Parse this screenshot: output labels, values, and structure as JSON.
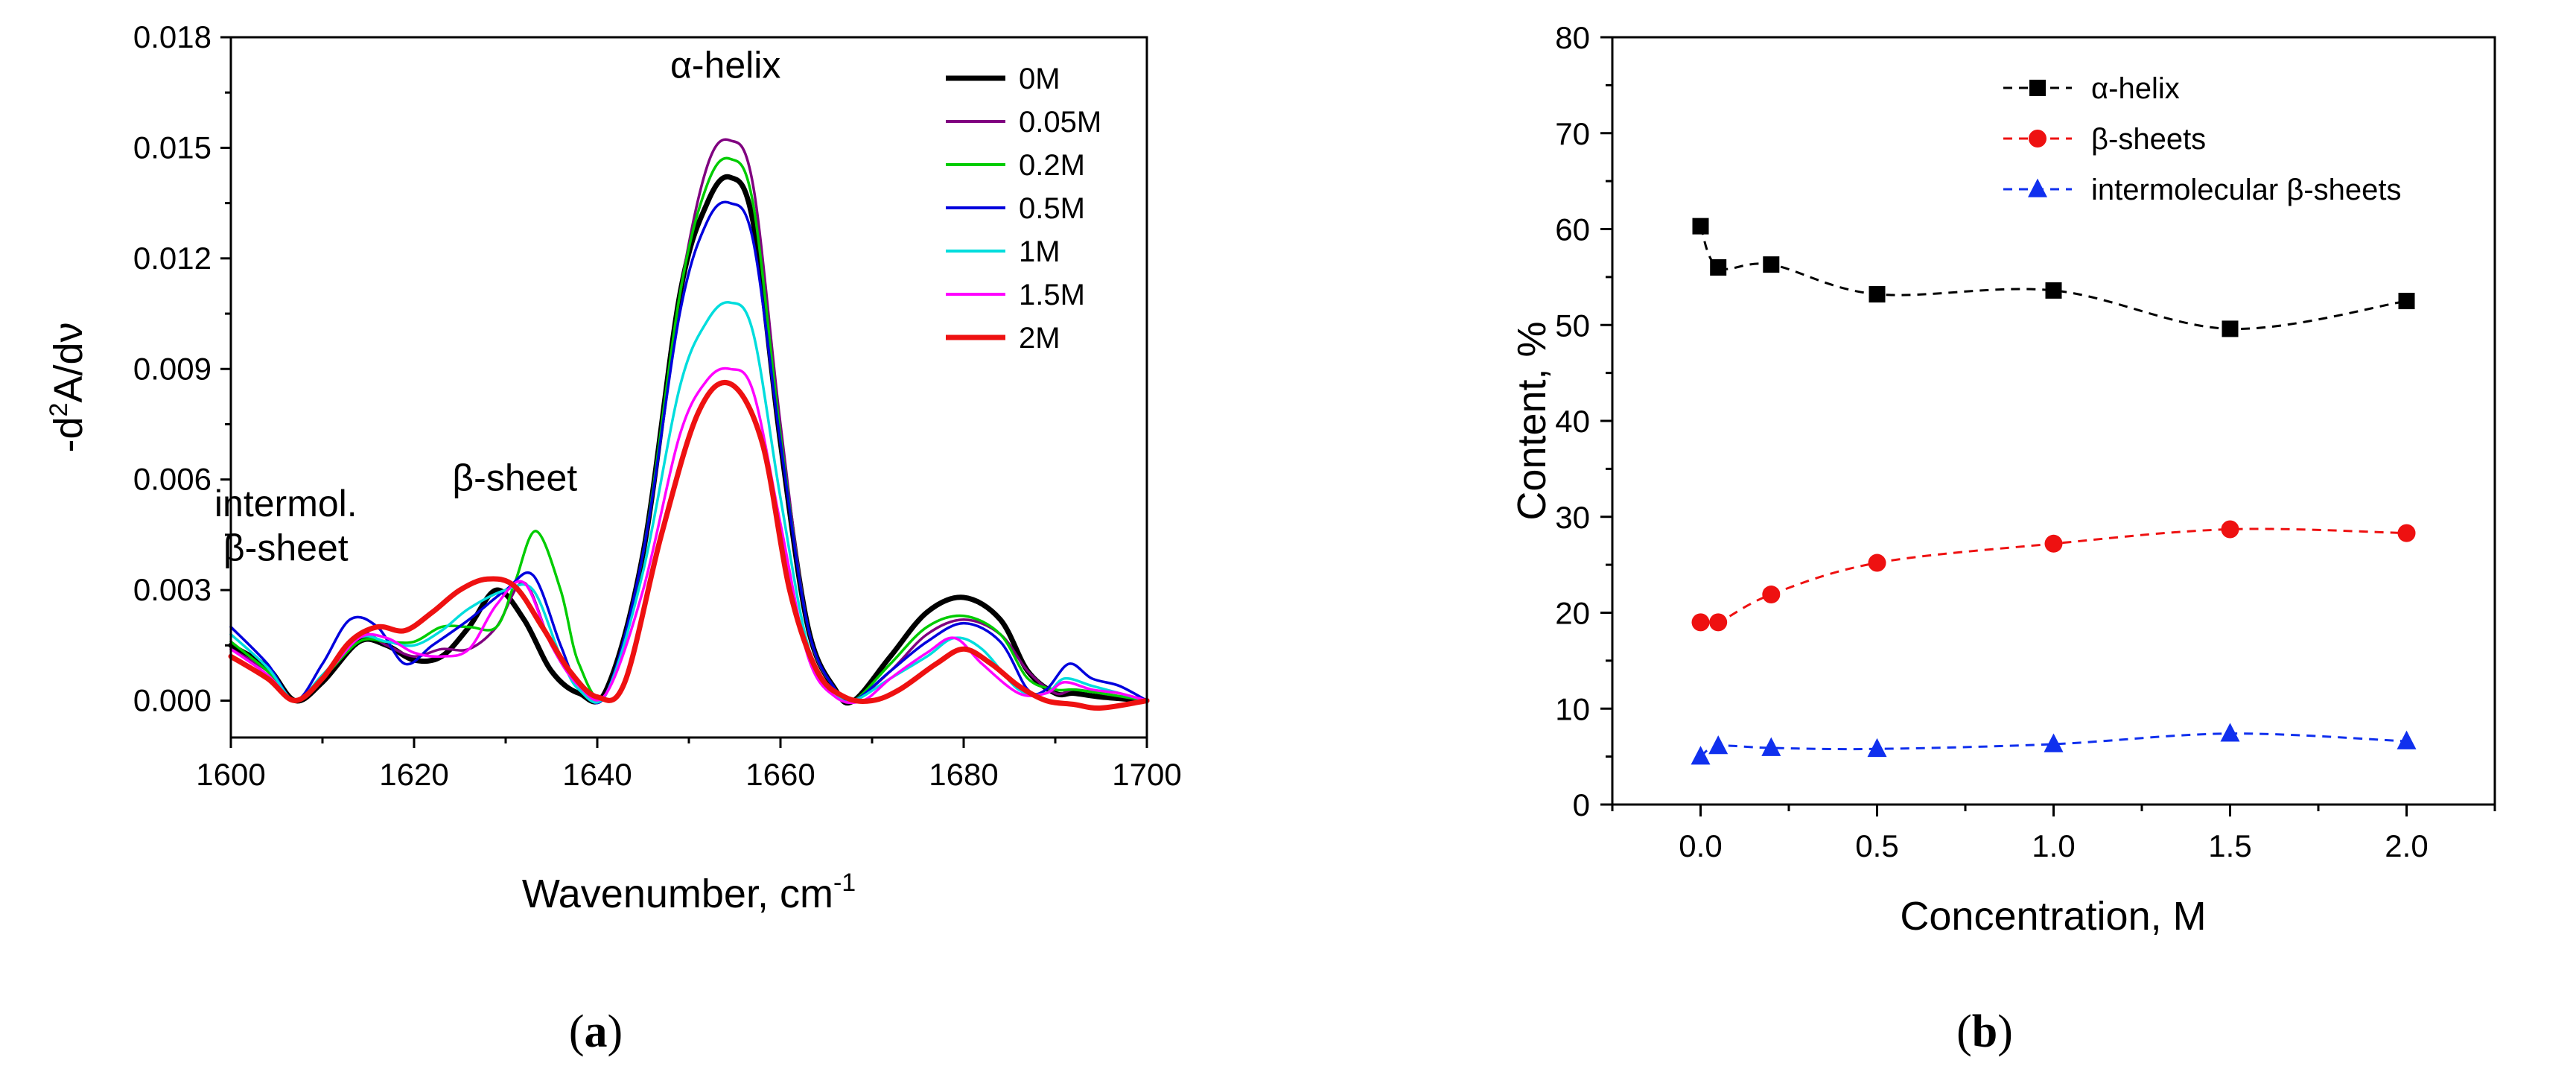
{
  "chart_data": [
    {
      "id": "a",
      "type": "line",
      "caption": "a",
      "xlabel": "Wavenumber, cm",
      "xlabel_sup": "-1",
      "ylabel_pre": "-d",
      "ylabel_sup": "2",
      "ylabel_post": "A/dν",
      "xlim": [
        1600,
        1700
      ],
      "ylim": [
        -0.001,
        0.018
      ],
      "xticks": [
        1600,
        1620,
        1640,
        1660,
        1680,
        1700
      ],
      "yticks": [
        "0.000",
        "0.003",
        "0.006",
        "0.009",
        "0.012",
        "0.015",
        "0.018"
      ],
      "annotations": [
        {
          "text": "α-helix",
          "x": 1654,
          "y": 0.0169
        },
        {
          "text": "β-sheet",
          "x": 1631,
          "y": 0.0057
        },
        {
          "text": "intermol.",
          "x": 1606,
          "y": 0.005
        },
        {
          "text": "β-sheet",
          "x": 1606,
          "y": 0.0038
        }
      ],
      "legend": {
        "position": "top-right"
      },
      "series": [
        {
          "name": "0M",
          "color": "#000000",
          "x": [
            1600,
            1604,
            1607,
            1610,
            1614,
            1617,
            1620,
            1623,
            1626,
            1629,
            1632,
            1635,
            1638,
            1641,
            1645,
            1649,
            1652,
            1654.5,
            1657,
            1660,
            1663,
            1666,
            1668,
            1672,
            1676,
            1680,
            1684,
            1687,
            1690,
            1692,
            1695,
            1700
          ],
          "y": [
            0.0015,
            0.0009,
            0.0,
            0.0005,
            0.0016,
            0.0015,
            0.0011,
            0.0012,
            0.002,
            0.003,
            0.0022,
            0.0008,
            0.0002,
            0.0003,
            0.004,
            0.011,
            0.0135,
            0.0142,
            0.013,
            0.007,
            0.002,
            0.0003,
            0.0,
            0.0012,
            0.0024,
            0.0028,
            0.0022,
            0.0008,
            0.0002,
            0.0002,
            0.0001,
            0.0
          ]
        },
        {
          "name": "0.05M",
          "color": "#800080",
          "x": [
            1600,
            1604,
            1607,
            1610,
            1614,
            1617,
            1620,
            1623,
            1626,
            1629,
            1632,
            1635,
            1638,
            1641,
            1645,
            1649,
            1652,
            1654.5,
            1657,
            1660,
            1663,
            1666,
            1668,
            1672,
            1676,
            1680,
            1684,
            1687,
            1690,
            1692,
            1695,
            1700
          ],
          "y": [
            0.0014,
            0.0008,
            0.0,
            0.0006,
            0.0018,
            0.0015,
            0.0012,
            0.0014,
            0.0014,
            0.002,
            0.0032,
            0.0015,
            0.0004,
            0.0002,
            0.004,
            0.011,
            0.0145,
            0.0152,
            0.014,
            0.0075,
            0.002,
            0.0003,
            0.0,
            0.0008,
            0.0018,
            0.0022,
            0.0018,
            0.0008,
            0.0002,
            0.0003,
            0.0002,
            0.0
          ]
        },
        {
          "name": "0.2M",
          "color": "#00cc00",
          "x": [
            1600,
            1604,
            1607,
            1610,
            1614,
            1617,
            1620,
            1623,
            1626,
            1629,
            1631,
            1633.3,
            1636,
            1638,
            1641,
            1645,
            1649,
            1652,
            1654.5,
            1657,
            1660,
            1663,
            1666,
            1668,
            1672,
            1676,
            1680,
            1684,
            1687,
            1690,
            1692,
            1695,
            1700
          ],
          "y": [
            0.0016,
            0.0008,
            0.0,
            0.0006,
            0.0016,
            0.0016,
            0.0016,
            0.002,
            0.002,
            0.002,
            0.0032,
            0.0046,
            0.003,
            0.001,
            0.0002,
            0.004,
            0.011,
            0.014,
            0.0147,
            0.0135,
            0.0072,
            0.002,
            0.0003,
            0.0,
            0.001,
            0.002,
            0.0023,
            0.0018,
            0.0006,
            0.0003,
            0.0003,
            0.0002,
            0.0
          ]
        },
        {
          "name": "0.5M",
          "color": "#0000dd",
          "x": [
            1600,
            1604,
            1607,
            1610,
            1613,
            1616,
            1619,
            1622,
            1626,
            1630,
            1633,
            1636,
            1638,
            1641,
            1645,
            1649,
            1652,
            1654.5,
            1657,
            1660,
            1663,
            1666,
            1668,
            1672,
            1676,
            1680,
            1684,
            1687,
            1689,
            1691.5,
            1694,
            1697,
            1700
          ],
          "y": [
            0.002,
            0.001,
            0.0,
            0.001,
            0.0022,
            0.002,
            0.001,
            0.0015,
            0.0022,
            0.003,
            0.0034,
            0.0015,
            0.0004,
            0.0002,
            0.004,
            0.0105,
            0.013,
            0.0135,
            0.0125,
            0.007,
            0.002,
            0.0003,
            0.0,
            0.0008,
            0.0016,
            0.0021,
            0.0016,
            0.0003,
            0.0003,
            0.001,
            0.0006,
            0.0004,
            0.0
          ]
        },
        {
          "name": "1M",
          "color": "#00dddd",
          "x": [
            1600,
            1604,
            1607,
            1610,
            1614,
            1617,
            1620,
            1623,
            1626,
            1630,
            1633,
            1636,
            1638,
            1641,
            1645,
            1649,
            1652,
            1654.5,
            1657,
            1660,
            1663,
            1666,
            1668,
            1672,
            1676,
            1679,
            1682,
            1686,
            1689,
            1691,
            1694,
            1697,
            1700
          ],
          "y": [
            0.0018,
            0.0009,
            0.0,
            0.0007,
            0.0017,
            0.0016,
            0.0015,
            0.0019,
            0.0025,
            0.003,
            0.003,
            0.0012,
            0.0003,
            0.0002,
            0.0035,
            0.0085,
            0.0103,
            0.0108,
            0.01,
            0.0055,
            0.0015,
            0.0002,
            0.0,
            0.0006,
            0.0012,
            0.0017,
            0.0014,
            0.0003,
            0.0002,
            0.0006,
            0.0004,
            0.0002,
            0.0
          ]
        },
        {
          "name": "1.5M",
          "color": "#ff00ff",
          "x": [
            1600,
            1604,
            1607,
            1610,
            1614,
            1617,
            1620,
            1623,
            1626,
            1629,
            1632,
            1635,
            1638,
            1641,
            1645,
            1649,
            1652,
            1654.5,
            1657,
            1660,
            1663,
            1666,
            1669,
            1672,
            1676,
            1679,
            1682,
            1686,
            1689,
            1691,
            1694,
            1697,
            1700
          ],
          "y": [
            0.0014,
            0.0007,
            0.0,
            0.0006,
            0.0017,
            0.0017,
            0.0013,
            0.0012,
            0.0014,
            0.0026,
            0.0032,
            0.0015,
            0.0004,
            0.0002,
            0.003,
            0.0072,
            0.0087,
            0.009,
            0.0084,
            0.0048,
            0.0012,
            0.0001,
            0.0,
            0.0006,
            0.0013,
            0.0017,
            0.001,
            0.0002,
            0.0002,
            0.0005,
            0.0003,
            0.0002,
            0.0
          ]
        },
        {
          "name": "2M",
          "color": "#ee1111",
          "x": [
            1600,
            1604,
            1607,
            1610,
            1613,
            1616,
            1619,
            1622,
            1625,
            1628,
            1631,
            1634,
            1637,
            1640,
            1643,
            1647,
            1651,
            1654.5,
            1658,
            1661,
            1664,
            1667,
            1670,
            1673,
            1677,
            1680,
            1683,
            1686,
            1689,
            1692,
            1695,
            1700
          ],
          "y": [
            0.0012,
            0.0006,
            0.0,
            0.0006,
            0.0016,
            0.002,
            0.0019,
            0.0024,
            0.003,
            0.0033,
            0.0031,
            0.002,
            0.0008,
            0.0001,
            0.0005,
            0.0045,
            0.0078,
            0.0086,
            0.007,
            0.003,
            0.0008,
            0.0001,
            0.0,
            0.0003,
            0.001,
            0.0014,
            0.001,
            0.0004,
            0.0,
            -0.0001,
            -0.0002,
            0.0
          ]
        }
      ]
    },
    {
      "id": "b",
      "type": "scatter",
      "caption": "b",
      "xlabel": "Concentration, M",
      "ylabel": "Content, %",
      "xlim": [
        -0.25,
        2.25
      ],
      "ylim": [
        0,
        80
      ],
      "xticks": [
        "0.0",
        "0.5",
        "1.0",
        "1.5",
        "2.0"
      ],
      "yticks": [
        "0",
        "10",
        "20",
        "30",
        "40",
        "50",
        "60",
        "70",
        "80"
      ],
      "legend": {
        "position": "top-right"
      },
      "series": [
        {
          "name": "α-helix",
          "color": "#000000",
          "marker": "square",
          "x": [
            0,
            0.05,
            0.2,
            0.5,
            1.0,
            1.5,
            2.0
          ],
          "y": [
            60.3,
            56.0,
            56.3,
            53.2,
            53.6,
            49.6,
            52.5
          ]
        },
        {
          "name": "β-sheets",
          "color": "#ee1111",
          "marker": "circle",
          "x": [
            0,
            0.05,
            0.2,
            0.5,
            1.0,
            1.5,
            2.0
          ],
          "y": [
            19.0,
            19.0,
            21.9,
            25.2,
            27.2,
            28.7,
            28.3
          ]
        },
        {
          "name": "intermolecular β-sheets",
          "color": "#1030ee",
          "marker": "triangle",
          "x": [
            0,
            0.05,
            0.2,
            0.5,
            1.0,
            1.5,
            2.0
          ],
          "y": [
            5.0,
            6.1,
            5.9,
            5.8,
            6.3,
            7.4,
            6.6
          ]
        }
      ]
    }
  ]
}
